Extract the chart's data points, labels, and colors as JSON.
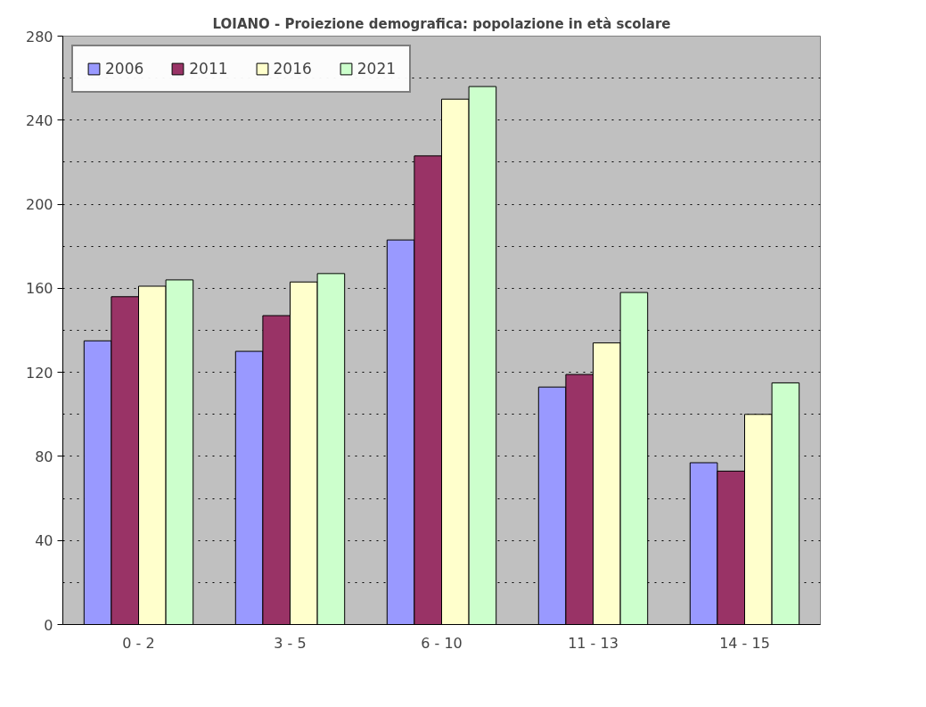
{
  "chart_data": {
    "type": "bar",
    "title": "LOIANO - Proiezione demografica: popolazione in età scolare",
    "categories": [
      "0 - 2",
      "3 - 5",
      "6 - 10",
      "11 - 13",
      "14 - 15"
    ],
    "series": [
      {
        "name": "2006",
        "color": "#9999ff",
        "values": [
          135,
          130,
          183,
          113,
          77
        ]
      },
      {
        "name": "2011",
        "color": "#993366",
        "values": [
          156,
          147,
          223,
          119,
          73
        ]
      },
      {
        "name": "2016",
        "color": "#ffffcc",
        "values": [
          161,
          163,
          250,
          134,
          100
        ]
      },
      {
        "name": "2021",
        "color": "#ccffcc",
        "values": [
          164,
          167,
          256,
          158,
          115
        ]
      }
    ],
    "ylim": [
      0,
      280
    ],
    "yticks": [
      0,
      40,
      80,
      120,
      160,
      200,
      240,
      280
    ],
    "grid": "y",
    "legend": "top left"
  }
}
